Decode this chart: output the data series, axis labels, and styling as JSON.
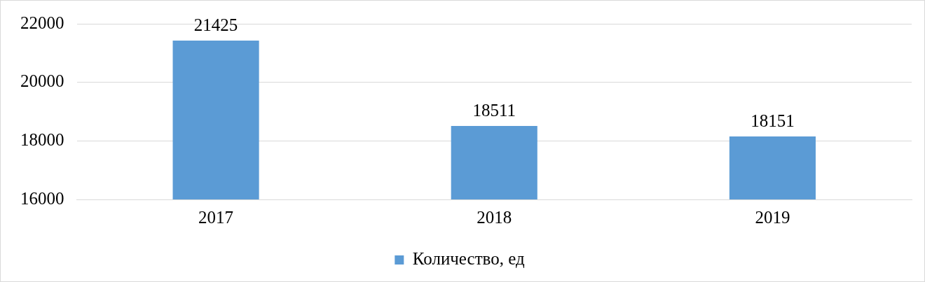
{
  "chart_data": {
    "type": "bar",
    "categories": [
      "2017",
      "2018",
      "2019"
    ],
    "series": [
      {
        "name": "Количество, ед",
        "color": "#5b9bd5",
        "values": [
          21425,
          18511,
          18151
        ]
      }
    ],
    "ylim": [
      16000,
      22000
    ],
    "yticks": [
      16000,
      18000,
      20000,
      22000
    ],
    "grid": "y",
    "legend": "bottom",
    "data_labels": true
  }
}
